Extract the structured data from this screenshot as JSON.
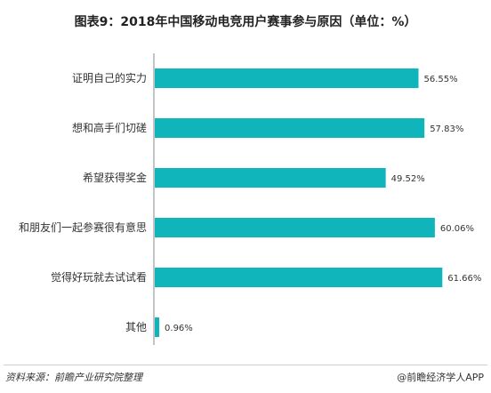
{
  "title": "图表9：2018年中国移动电竞用户赛事参与原因（单位：%）",
  "chart_data": {
    "type": "bar",
    "orientation": "horizontal",
    "categories": [
      "证明自己的实力",
      "想和高手们切磋",
      "希望获得奖金",
      "和朋友们一起参赛很有意思",
      "觉得好玩就去试试看",
      "其他"
    ],
    "values": [
      56.55,
      57.83,
      49.52,
      60.06,
      61.66,
      0.96
    ],
    "value_labels": [
      "56.55%",
      "57.83%",
      "49.52%",
      "60.06%",
      "61.66%",
      "0.96%"
    ],
    "unit": "%",
    "xlim": [
      0,
      70
    ],
    "grid": false,
    "legend": "none",
    "bar_color": "#10b4bb"
  },
  "footer": {
    "source": "资料来源：前瞻产业研究院整理",
    "credit": "@前瞻经济学人APP"
  }
}
